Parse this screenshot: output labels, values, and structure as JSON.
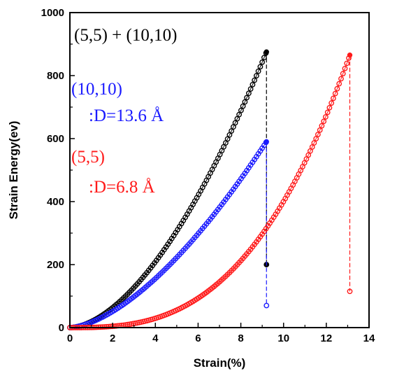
{
  "chart_data": {
    "type": "scatter",
    "title": "",
    "xlabel": "Strain(%)",
    "ylabel": "Strain Energy(ev)",
    "xlim": [
      0,
      14
    ],
    "ylim": [
      0,
      1000
    ],
    "xticks": [
      0,
      2,
      4,
      6,
      8,
      10,
      12,
      14
    ],
    "yticks": [
      0,
      200,
      400,
      600,
      800,
      1000
    ],
    "grid": false,
    "legend": "none",
    "annotations": [
      {
        "text": "(5,5) + (10,10)",
        "color": "#000000"
      },
      {
        "text": "(10,10)",
        "color": "#1a1aff"
      },
      {
        "text": ":D=13.6 Å",
        "color": "#1a1aff"
      },
      {
        "text": "(5,5)",
        "color": "#ff1a1a"
      },
      {
        "text": ":D=6.8 Å",
        "color": "#ff1a1a"
      }
    ],
    "series": [
      {
        "color": "#000000",
        "x_max": 9.2,
        "peak": 875,
        "exponent": 1.72,
        "drop_to": 200
      },
      {
        "color": "#1a1aff",
        "x_max": 9.2,
        "peak": 590,
        "exponent": 1.6,
        "drop_to": 70
      },
      {
        "color": "#ff1a1a",
        "x_max": 13.1,
        "peak": 865,
        "exponent": 2.85,
        "drop_to": 115
      }
    ]
  }
}
